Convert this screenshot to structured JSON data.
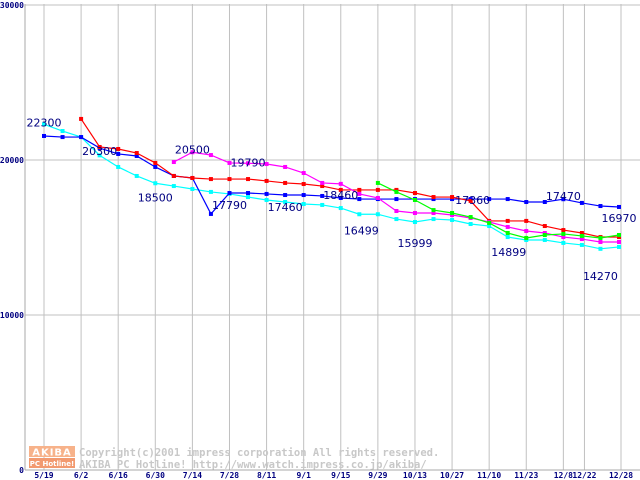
{
  "chart_data": {
    "type": "line",
    "title": "",
    "xlabel": "",
    "ylabel": "",
    "ylim": [
      0,
      30000
    ],
    "grid": true,
    "y_ticks": [
      "0",
      "10000",
      "20000",
      "30000"
    ],
    "y_tick_values": [
      0,
      10000,
      20000,
      30000
    ],
    "x_ticks": [
      {
        "label": "5/19",
        "index": 0
      },
      {
        "label": "6/2",
        "index": 2
      },
      {
        "label": "6/16",
        "index": 4
      },
      {
        "label": "6/30",
        "index": 6
      },
      {
        "label": "7/14",
        "index": 8
      },
      {
        "label": "7/28",
        "index": 10
      },
      {
        "label": "8/11",
        "index": 12
      },
      {
        "label": "9/1",
        "index": 14
      },
      {
        "label": "9/15",
        "index": 16
      },
      {
        "label": "9/29",
        "index": 18
      },
      {
        "label": "10/13",
        "index": 20
      },
      {
        "label": "10/27",
        "index": 22
      },
      {
        "label": "11/10",
        "index": 24
      },
      {
        "label": "11/23",
        "index": 26
      },
      {
        "label": "12/8",
        "index": 28
      },
      {
        "label": "12/22",
        "index": 30
      },
      {
        "label": "12/28",
        "index": 31
      }
    ],
    "point_count": 32,
    "series": [
      {
        "name": "cyan",
        "color": "#00ffff",
        "values": [
          22300,
          21870,
          21480,
          20300,
          19550,
          18970,
          18500,
          18320,
          18130,
          17940,
          17810,
          17610,
          17420,
          17290,
          17160,
          17100,
          16900,
          16500,
          16500,
          16190,
          15999,
          16190,
          16130,
          15870,
          15740,
          15030,
          14840,
          14840,
          14650,
          14520,
          14270,
          14390
        ]
      },
      {
        "name": "blue",
        "color": "#0000ff",
        "values": [
          21550,
          21480,
          21480,
          20770,
          20390,
          20260,
          19550,
          18970,
          18840,
          16520,
          17870,
          17870,
          17810,
          17740,
          17740,
          17680,
          17550,
          17480,
          17480,
          17480,
          17480,
          17480,
          17480,
          17480,
          17480,
          17480,
          17290,
          17290,
          17470,
          17230,
          17030,
          16970
        ]
      },
      {
        "name": "red",
        "color": "#ff0000",
        "values": [
          null,
          null,
          22650,
          20840,
          20710,
          20450,
          19810,
          18970,
          18840,
          18770,
          18770,
          18770,
          18650,
          18520,
          18450,
          18320,
          18070,
          18070,
          18070,
          18070,
          17870,
          17610,
          17610,
          17360,
          16070,
          16070,
          16070,
          15740,
          15480,
          15290,
          15030,
          15030
        ]
      },
      {
        "name": "magenta",
        "color": "#ff00ff",
        "values": [
          null,
          null,
          null,
          null,
          null,
          null,
          null,
          19870,
          20500,
          20320,
          19810,
          19790,
          19740,
          19550,
          19160,
          18520,
          18460,
          17810,
          17550,
          16710,
          16580,
          16580,
          16450,
          16260,
          16000,
          15680,
          15420,
          15290,
          15030,
          14900,
          14710,
          14710
        ]
      },
      {
        "name": "green",
        "color": "#00ff00",
        "values": [
          null,
          null,
          null,
          null,
          null,
          null,
          null,
          null,
          null,
          null,
          null,
          null,
          null,
          null,
          null,
          null,
          null,
          null,
          18520,
          17940,
          17420,
          16770,
          16580,
          16320,
          15940,
          15290,
          14970,
          15160,
          15230,
          15100,
          14970,
          15160
        ]
      }
    ],
    "annotations": [
      {
        "text": "22300",
        "index": 0
      },
      {
        "text": "20300",
        "index": 3
      },
      {
        "text": "18500",
        "index": 6
      },
      {
        "text": "20500",
        "index": 8
      },
      {
        "text": "17790",
        "index": 10
      },
      {
        "text": "19790",
        "index": 11
      },
      {
        "text": "17460",
        "index": 13
      },
      {
        "text": "18460",
        "index": 16
      },
      {
        "text": "16499",
        "index": 17
      },
      {
        "text": "15999",
        "index": 20
      },
      {
        "text": "17360",
        "index": 23
      },
      {
        "text": "14899",
        "index": 25
      },
      {
        "text": "17470",
        "index": 28
      },
      {
        "text": "14270",
        "index": 30
      },
      {
        "text": "16970",
        "index": 31
      }
    ]
  },
  "watermark": {
    "logo_top": "AKIBA",
    "logo_bottom": "PC Hotline!",
    "line1": "Copyright(c)2001 impress corporation All rights reserved.",
    "line2": "AKIBA PC Hotline!  http://www.watch.impress.co.jp/akiba/"
  }
}
